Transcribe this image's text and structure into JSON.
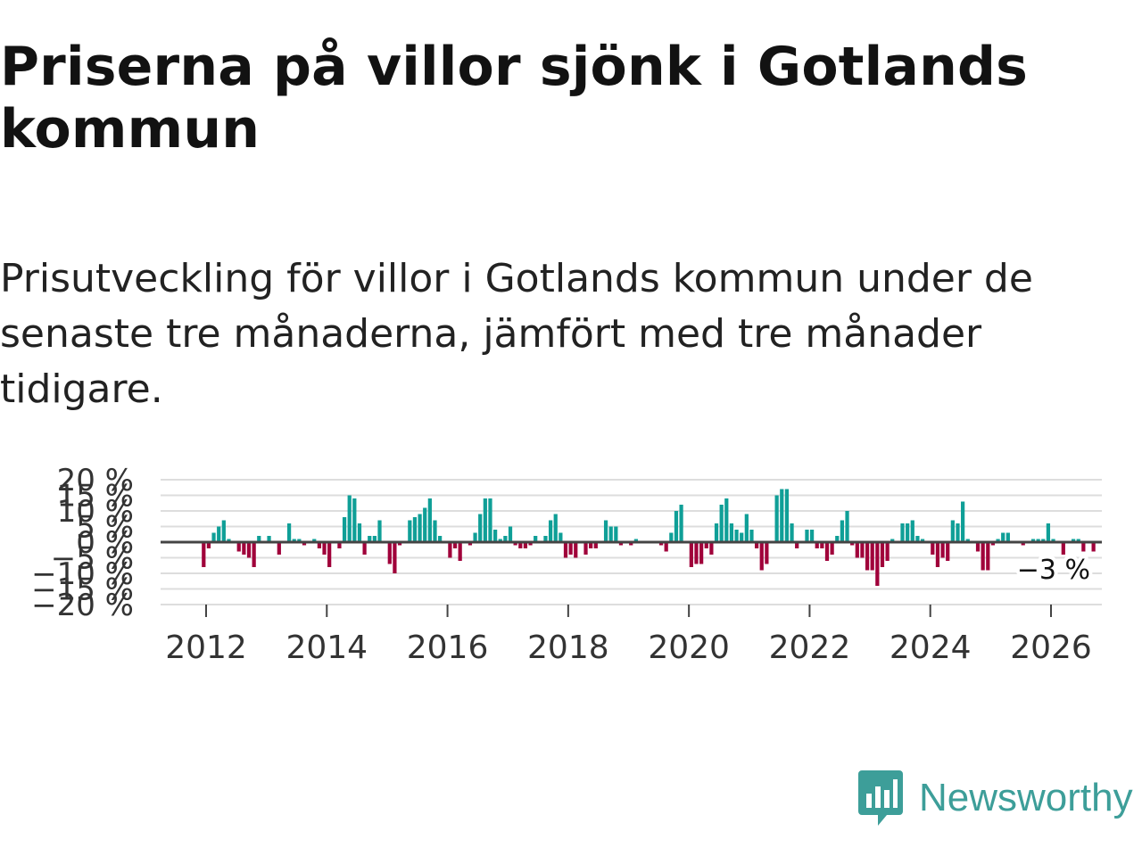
{
  "title": "Priserna på villor sjönk i Gotlands kommun",
  "subtitle": "Prisutveckling för villor i Gotlands kommun under de senaste tre månaderna, jämfört med tre månader tidigare.",
  "brand": {
    "name": "Newsworthy",
    "color": "#3d9e99",
    "icon": "bar-chart-logo-icon"
  },
  "colors": {
    "positive": "#0f9f97",
    "negative": "#a0003a",
    "grid": "#dddddd",
    "zero": "#444444"
  },
  "chart_data": {
    "type": "bar",
    "title": "Priserna på villor sjönk i Gotlands kommun",
    "xlabel": "",
    "ylabel": "",
    "ylim": [
      -20,
      20
    ],
    "yticks": [
      20,
      15,
      10,
      5,
      0,
      -5,
      -10,
      -15,
      -20
    ],
    "ytick_labels": [
      "20 %",
      "15 %",
      "10 %",
      "5 %",
      "0 %",
      "−5 %",
      "−10 %",
      "−15 %",
      "−20 %"
    ],
    "xticks": [
      2012,
      2014,
      2016,
      2018,
      2020,
      2022,
      2024,
      2026
    ],
    "xtick_labels": [
      "2012",
      "2014",
      "2016",
      "2018",
      "2020",
      "2022",
      "2024",
      "2026"
    ],
    "grid": true,
    "last_value_label": "−3 %",
    "start": 2011.96,
    "step": 0.0833,
    "values": [
      -8,
      -2,
      3,
      5,
      7,
      1,
      0,
      -3,
      -4,
      -5,
      -8,
      2,
      0,
      2,
      0,
      -4,
      0,
      6,
      1,
      1,
      -1,
      0,
      1,
      -2,
      -4,
      -8,
      0,
      -2,
      8,
      15,
      14,
      6,
      -4,
      2,
      2,
      7,
      0,
      -7,
      -10,
      -1,
      0,
      7,
      8,
      9,
      11,
      14,
      7,
      2,
      0,
      -5,
      -2,
      -6,
      0,
      -1,
      3,
      9,
      14,
      14,
      4,
      1,
      2,
      5,
      -1,
      -2,
      -2,
      -1,
      2,
      0,
      2,
      7,
      9,
      3,
      -5,
      -4,
      -5,
      0,
      -4,
      -2,
      -2,
      0,
      7,
      5,
      5,
      -1,
      0,
      -1,
      1,
      0,
      0,
      0,
      0,
      -1,
      -3,
      3,
      10,
      12,
      0,
      -8,
      -7,
      -7,
      -2,
      -4,
      6,
      12,
      14,
      6,
      4,
      3,
      9,
      4,
      -2,
      -9,
      -7,
      0,
      15,
      17,
      17,
      6,
      -2,
      0,
      4,
      4,
      -2,
      -2,
      -6,
      -4,
      2,
      7,
      10,
      -1,
      -5,
      -5,
      -9,
      -9,
      -14,
      -8,
      -6,
      1,
      0,
      6,
      6,
      7,
      2,
      1,
      0,
      -4,
      -8,
      -5,
      -6,
      7,
      6,
      13,
      1,
      0,
      -3,
      -9,
      -9,
      -1,
      1,
      3,
      3,
      0,
      0,
      -1,
      0,
      1,
      1,
      1,
      6,
      1,
      0,
      -4,
      0,
      1,
      1,
      -3,
      0,
      -3
    ]
  }
}
